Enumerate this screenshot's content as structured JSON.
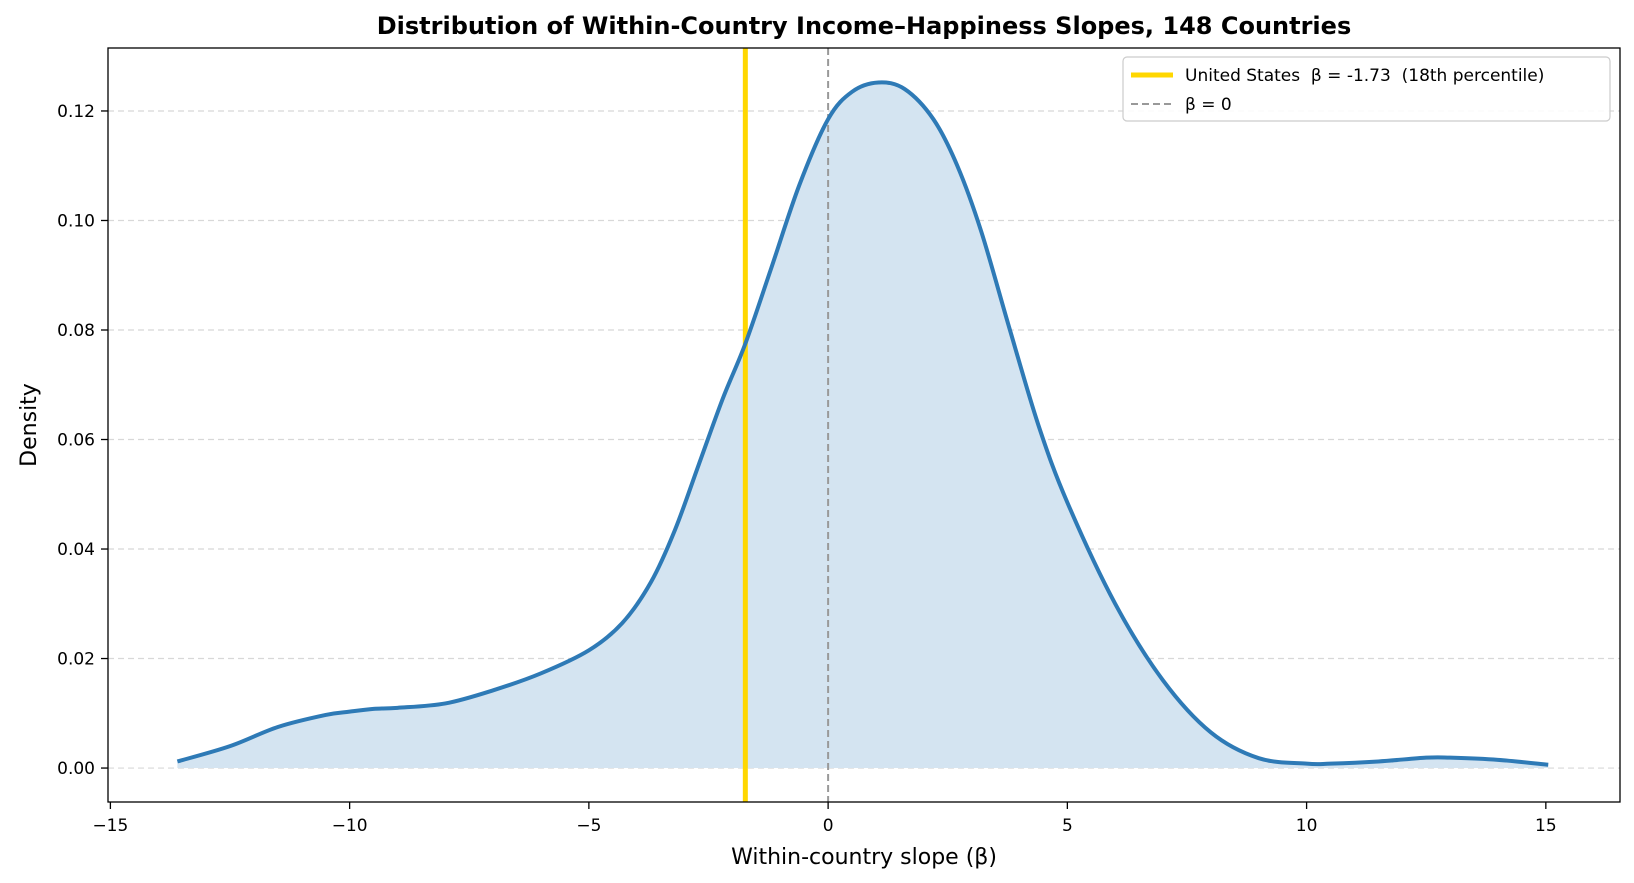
{
  "chart_data": {
    "type": "area",
    "title": "Distribution of Within-Country Income–Happiness Slopes, 148 Countries",
    "xlabel": "Within-country slope (β)",
    "ylabel": "Density",
    "xlim": [
      -15.05,
      16.55
    ],
    "ylim": [
      -0.0062,
      0.1315
    ],
    "xticks": [
      -15,
      -10,
      -5,
      0,
      5,
      10,
      15
    ],
    "xtick_labels": [
      "−15",
      "−10",
      "−5",
      "0",
      "5",
      "10",
      "15"
    ],
    "yticks": [
      0.0,
      0.02,
      0.04,
      0.06,
      0.08,
      0.1,
      0.12
    ],
    "ytick_labels": [
      "0.00",
      "0.02",
      "0.04",
      "0.06",
      "0.08",
      "0.10",
      "0.12"
    ],
    "grid": "horizontal dashed",
    "legend_position": "top-right",
    "series": [
      {
        "name": "",
        "color": "#2e7ab6",
        "fill": "#d4e4f1",
        "x": [
          -13.6,
          -12.5,
          -11.5,
          -10.5,
          -10.0,
          -9.5,
          -9.0,
          -8.0,
          -7.0,
          -6.0,
          -5.0,
          -4.3,
          -3.7,
          -3.2,
          -2.7,
          -2.2,
          -1.73,
          -1.2,
          -0.6,
          0.0,
          0.5,
          1.05,
          1.6,
          2.2,
          2.7,
          3.2,
          3.8,
          4.4,
          5.0,
          6.0,
          7.0,
          8.0,
          9.0,
          10.0,
          10.5,
          11.5,
          12.5,
          13.0,
          14.0,
          15.05
        ],
        "y": [
          0.0012,
          0.004,
          0.0075,
          0.0097,
          0.0103,
          0.0108,
          0.011,
          0.0118,
          0.0142,
          0.0173,
          0.0215,
          0.0265,
          0.034,
          0.0435,
          0.0555,
          0.0675,
          0.0775,
          0.091,
          0.1065,
          0.1185,
          0.1235,
          0.1252,
          0.124,
          0.1185,
          0.11,
          0.098,
          0.08,
          0.0625,
          0.0485,
          0.03,
          0.016,
          0.0065,
          0.0018,
          0.0008,
          0.0008,
          0.0012,
          0.0019,
          0.0019,
          0.0015,
          0.0006
        ]
      }
    ],
    "vlines": [
      {
        "name": "United States  β = -1.73  (18th percentile)",
        "x": -1.73,
        "color": "#ffd700",
        "style": "solid"
      },
      {
        "name": "β = 0",
        "x": 0,
        "color": "#999999",
        "style": "dashed"
      }
    ]
  }
}
